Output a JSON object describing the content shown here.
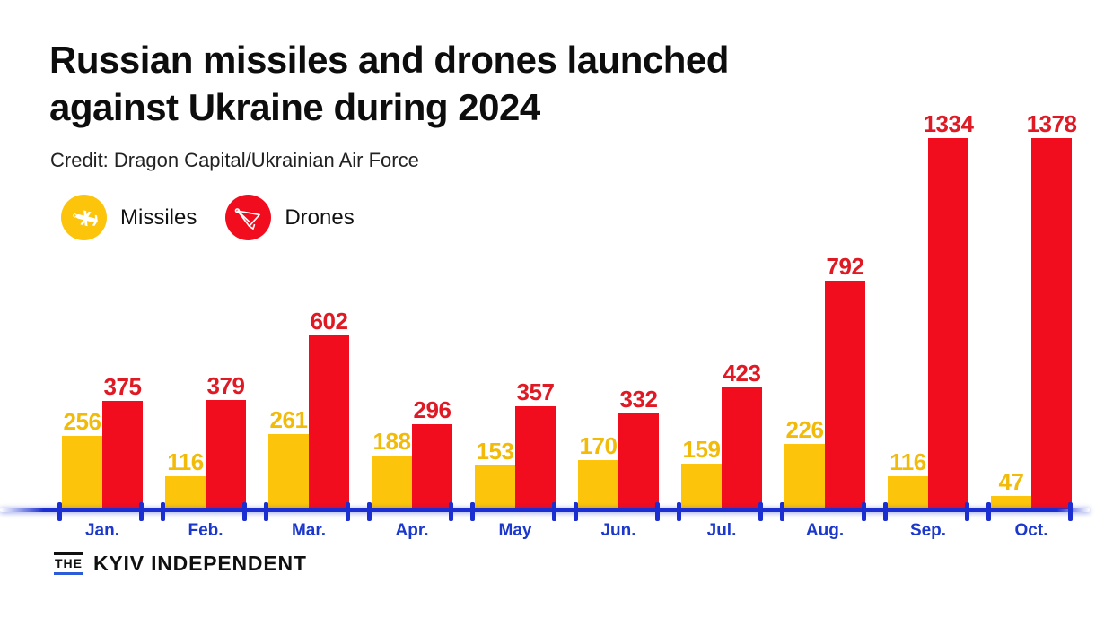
{
  "header": {
    "title_lines": [
      "Russian missiles and drones launched",
      "against Ukraine during 2024"
    ],
    "credit": "Credit: Dragon Capital/Ukrainian Air Force"
  },
  "legend": {
    "items": [
      {
        "label": "Missiles",
        "icon": "missile-icon",
        "color": "#FCC40B"
      },
      {
        "label": "Drones",
        "icon": "drone-icon",
        "color": "#F20D1E"
      }
    ]
  },
  "chart_data": {
    "type": "bar",
    "title": "Russian missiles and drones launched against Ukraine during 2024",
    "categories": [
      "Jan.",
      "Feb.",
      "Mar.",
      "Apr.",
      "May",
      "Jun.",
      "Jul.",
      "Aug.",
      "Sep.",
      "Oct."
    ],
    "series": [
      {
        "name": "Missiles",
        "color": "#FCC40B",
        "label_color": "#F2BB0A",
        "values": [
          256,
          116,
          261,
          188,
          153,
          170,
          159,
          226,
          116,
          47
        ]
      },
      {
        "name": "Drones",
        "color": "#F20D1E",
        "label_color": "#DF1A24",
        "values": [
          375,
          379,
          602,
          296,
          357,
          332,
          423,
          792,
          1334,
          1378
        ]
      }
    ],
    "ylim": [
      0,
      1378
    ],
    "grid": false,
    "value_labels": true,
    "legend_position": "top-left",
    "axis_color": "#1B2ED1",
    "category_label_color": "#1C38CC"
  },
  "footer": {
    "logo_the": "THE",
    "logo_name": "KYIV INDEPENDENT"
  }
}
